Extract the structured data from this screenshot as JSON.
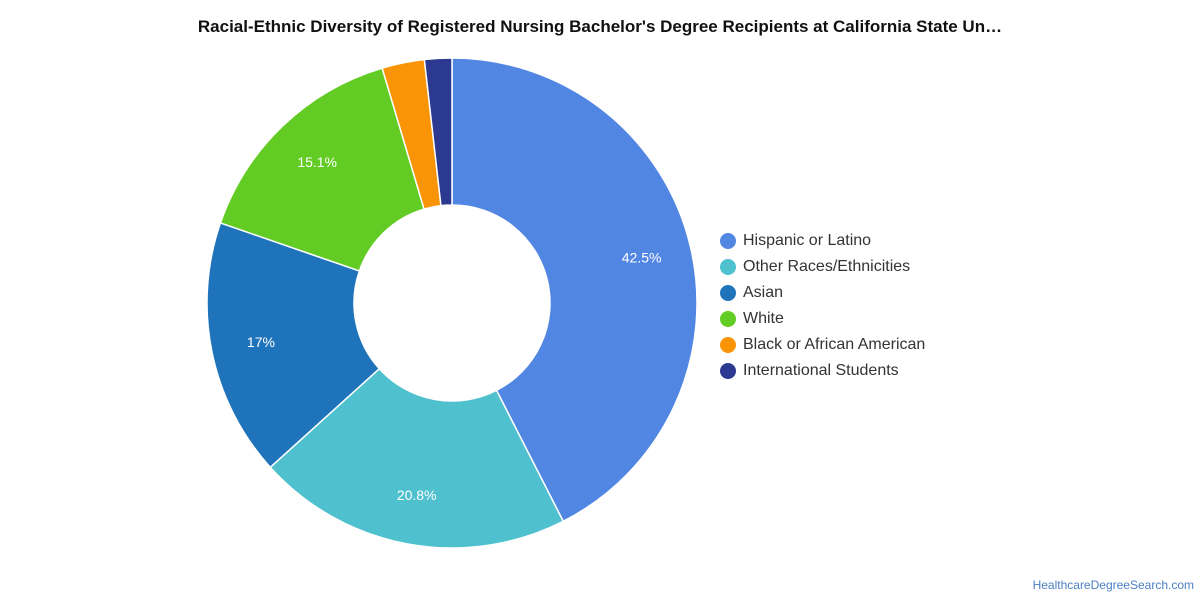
{
  "chart_data": {
    "type": "pie",
    "variant": "donut",
    "title": "Racial-Ethnic Diversity of Registered Nursing Bachelor's Degree Recipients at California State Un…",
    "legend_position": "right",
    "slices": [
      {
        "name": "Hispanic or Latino",
        "value": 42.5,
        "label": "42.5%",
        "color": "#5286e3"
      },
      {
        "name": "Other Races/Ethnicities",
        "value": 20.8,
        "label": "20.8%",
        "color": "#4fc0ce"
      },
      {
        "name": "Asian",
        "value": 17,
        "label": "17%",
        "color": "#1f73bb"
      },
      {
        "name": "White",
        "value": 15.1,
        "label": "15.1%",
        "color": "#62cb24"
      },
      {
        "name": "Black or African American",
        "value": 2.8,
        "label": "",
        "color": "#f89406"
      },
      {
        "name": "International Students",
        "value": 1.8,
        "label": "",
        "color": "#2b3990"
      }
    ]
  },
  "watermark": "HealthcareDegreeSearch.com"
}
